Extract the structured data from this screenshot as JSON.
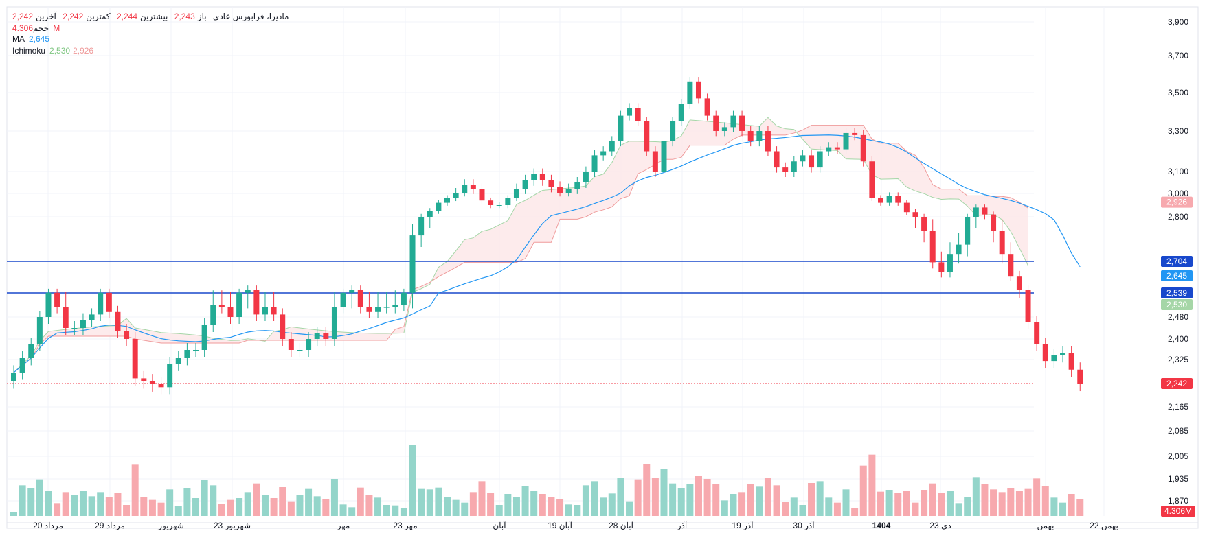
{
  "legend": {
    "symbol_name": "مادیرا، فرابورس عادی",
    "open_label": "باز",
    "open_value": "2,243",
    "high_label": "بیشترین",
    "high_value": "2,244",
    "low_label": "کمترین",
    "low_value": "2,242",
    "close_label": "آخرین",
    "close_value": "2,242",
    "volume_label": "حجم",
    "volume_value": "4.306M",
    "ma_label": "MA",
    "ma_value": "2,645",
    "ichimoku_label": "Ichimoku",
    "ichimoku_value1": "2,530",
    "ichimoku_value2": "2,926"
  },
  "colors": {
    "up": "#22ab94",
    "down": "#f23645",
    "up_volume": "#94d5ca",
    "down_volume": "#f7a9ae",
    "ma": "#2196f3",
    "level": "#1848cc",
    "kumo_green": "#e8f5e9",
    "kumo_red": "#fde9ea"
  },
  "chart_data": {
    "type": "candlestick",
    "y_ticks": [
      "3,900",
      "3,700",
      "3,500",
      "3,300",
      "3,100",
      "3,000",
      "2,800",
      "2,480",
      "2,400",
      "2,325",
      "2,165",
      "2,085",
      "2,005",
      "1,935",
      "1,870"
    ],
    "x_ticks": [
      "20 مرداد",
      "29 مرداد",
      "شهریور",
      "23 شهریور",
      "مهر",
      "23 مهر",
      "آبان",
      "19 آبان",
      "28 آبان",
      "آذر",
      "19 آذر",
      "30 آذر",
      "1404",
      "23 دی",
      "بهمن",
      "22 بهمن"
    ],
    "horizontal_levels": [
      2704,
      2539
    ],
    "last_price": 2242,
    "price_badges": [
      {
        "label": "2,926",
        "value": 2926,
        "color": "#f7a9ae"
      },
      {
        "label": "2,704",
        "value": 2704,
        "color": "#1848cc"
      },
      {
        "label": "2,645",
        "value": 2645,
        "color": "#2196f3"
      },
      {
        "label": "2,539",
        "value": 2539,
        "color": "#1848cc"
      },
      {
        "label": "2,530",
        "value": 2530,
        "color": "#a5d6a7"
      },
      {
        "label": "2,242",
        "value": 2242,
        "color": "#f23645"
      }
    ],
    "volume_badge": "4.306M",
    "candles_close_approx": [
      2280,
      2330,
      2380,
      2480,
      2540,
      2520,
      2440,
      2440,
      2470,
      2490,
      2540,
      2500,
      2430,
      2400,
      2260,
      2250,
      2240,
      2230,
      2310,
      2330,
      2360,
      2360,
      2450,
      2530,
      2520,
      2480,
      2540,
      2560,
      2490,
      2520,
      2490,
      2400,
      2360,
      2360,
      2400,
      2420,
      2400,
      2520,
      2540,
      2560,
      2520,
      2500,
      2520,
      2520,
      2530,
      2540,
      2760,
      2800,
      2850,
      2920,
      2960,
      3000,
      3040,
      3020,
      2940,
      2900,
      2900,
      2960,
      3020,
      3060,
      3090,
      3060,
      3030,
      3000,
      3020,
      3050,
      3100,
      3180,
      3200,
      3250,
      3380,
      3420,
      3350,
      3200,
      3100,
      3250,
      3350,
      3440,
      3560,
      3470,
      3380,
      3300,
      3320,
      3380,
      3300,
      3250,
      3300,
      3200,
      3120,
      3100,
      3150,
      3180,
      3120,
      3200,
      3220,
      3210,
      3290,
      3280,
      3150,
      2960,
      2920,
      2980,
      2920,
      2840,
      2800,
      2770,
      2700,
      2660,
      2720,
      2740,
      2800,
      2880,
      2820,
      2770,
      2720,
      2640,
      2560,
      2460,
      2380,
      2320,
      2340,
      2350,
      2290,
      2242
    ],
    "ma_series": "MA",
    "ichimoku": {
      "span_a_last": 2530,
      "span_b_last": 2926
    }
  }
}
